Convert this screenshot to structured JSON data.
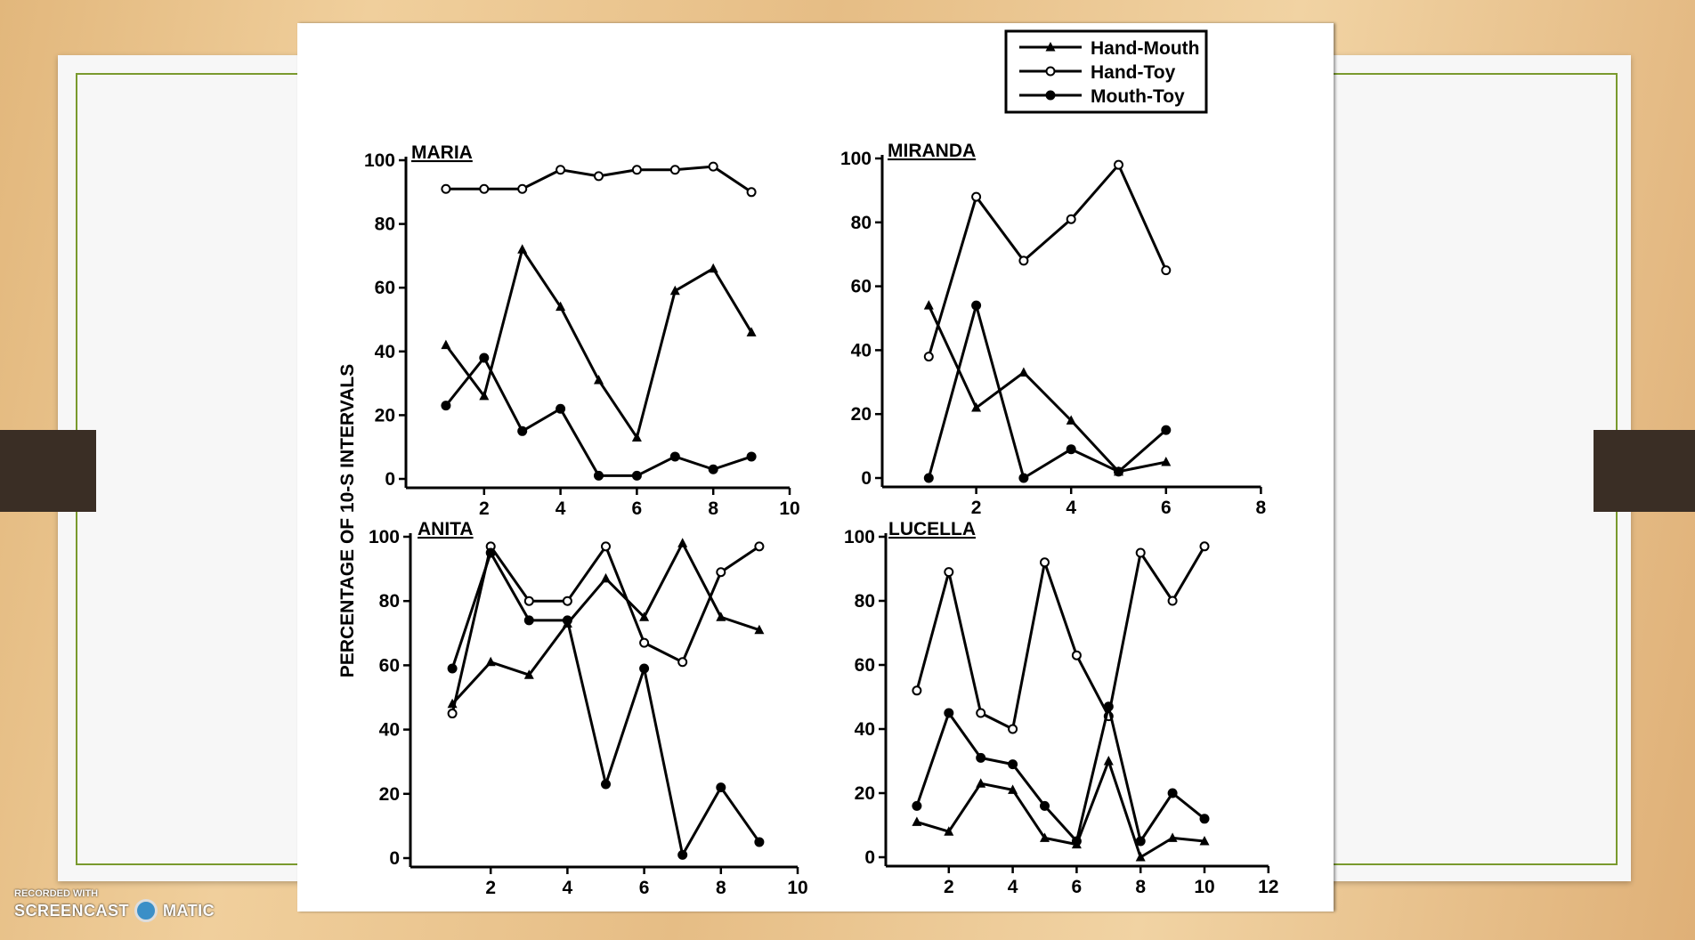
{
  "watermark": {
    "line1": "RECORDED WITH",
    "brand_left": "SCREENCAST",
    "brand_right": "MATIC"
  },
  "colors": {
    "line": "#000000",
    "slide_border": "#7a9a2e",
    "paper": "#ffffff"
  },
  "chart_data": {
    "type": "line",
    "ylabel": "PERCENTAGE OF 10-S INTERVALS",
    "legend": {
      "placement": "top-right",
      "entries": [
        {
          "name": "Hand-Mouth",
          "marker": "filled-triangle"
        },
        {
          "name": "Hand-Toy",
          "marker": "open-circle"
        },
        {
          "name": "Mouth-Toy",
          "marker": "filled-circle"
        }
      ]
    },
    "panels": [
      {
        "title": "MARIA",
        "ylim": [
          0,
          100
        ],
        "yticks": [
          "0",
          "20",
          "40",
          "60",
          "80",
          "100"
        ],
        "xlim": [
          0,
          10
        ],
        "xticks": [
          "2",
          "4",
          "6",
          "8",
          "10"
        ],
        "x": [
          1,
          2,
          3,
          4,
          5,
          6,
          7,
          8,
          9
        ],
        "series": [
          {
            "name": "Hand-Mouth",
            "values": [
              42,
              26,
              72,
              54,
              31,
              13,
              59,
              66,
              46
            ]
          },
          {
            "name": "Hand-Toy",
            "values": [
              91,
              91,
              91,
              97,
              95,
              97,
              97,
              98,
              90
            ]
          },
          {
            "name": "Mouth-Toy",
            "values": [
              23,
              38,
              15,
              22,
              1,
              1,
              7,
              3,
              7
            ]
          }
        ]
      },
      {
        "title": "MIRANDA",
        "ylim": [
          0,
          100
        ],
        "yticks": [
          "0",
          "20",
          "40",
          "60",
          "80",
          "100"
        ],
        "xlim": [
          0,
          8
        ],
        "xticks": [
          "2",
          "4",
          "6",
          "8"
        ],
        "x": [
          1,
          2,
          3,
          4,
          5,
          6
        ],
        "series": [
          {
            "name": "Hand-Mouth",
            "values": [
              54,
              22,
              33,
              18,
              2,
              5
            ]
          },
          {
            "name": "Hand-Toy",
            "values": [
              38,
              88,
              68,
              81,
              98,
              65
            ]
          },
          {
            "name": "Mouth-Toy",
            "values": [
              0,
              54,
              0,
              9,
              2,
              15
            ]
          }
        ]
      },
      {
        "title": "ANITA",
        "ylim": [
          0,
          100
        ],
        "yticks": [
          "0",
          "20",
          "40",
          "60",
          "80",
          "100"
        ],
        "xlim": [
          0,
          10
        ],
        "xticks": [
          "2",
          "4",
          "6",
          "8",
          "10"
        ],
        "x": [
          1,
          2,
          3,
          4,
          5,
          6,
          7,
          8,
          9
        ],
        "series": [
          {
            "name": "Hand-Mouth",
            "values": [
              48,
              61,
              57,
              73,
              87,
              75,
              98,
              75,
              71
            ]
          },
          {
            "name": "Hand-Toy",
            "values": [
              45,
              97,
              80,
              80,
              97,
              67,
              61,
              89,
              97
            ]
          },
          {
            "name": "Mouth-Toy",
            "values": [
              59,
              95,
              74,
              74,
              23,
              59,
              1,
              22,
              5
            ]
          }
        ]
      },
      {
        "title": "LUCELLA",
        "ylim": [
          0,
          100
        ],
        "yticks": [
          "0",
          "20",
          "40",
          "60",
          "80",
          "100"
        ],
        "xlim": [
          0,
          12
        ],
        "xticks": [
          "2",
          "4",
          "6",
          "8",
          "10",
          "12"
        ],
        "x": [
          1,
          2,
          3,
          4,
          5,
          6,
          7,
          8,
          9,
          10
        ],
        "series": [
          {
            "name": "Hand-Mouth",
            "values": [
              11,
              8,
              23,
              21,
              6,
              4,
              30,
              0,
              6,
              5
            ]
          },
          {
            "name": "Hand-Toy",
            "values": [
              52,
              89,
              45,
              40,
              92,
              63,
              44,
              95,
              80,
              97
            ]
          },
          {
            "name": "Mouth-Toy",
            "values": [
              16,
              45,
              31,
              29,
              16,
              5,
              47,
              5,
              20,
              12
            ]
          }
        ]
      }
    ]
  }
}
